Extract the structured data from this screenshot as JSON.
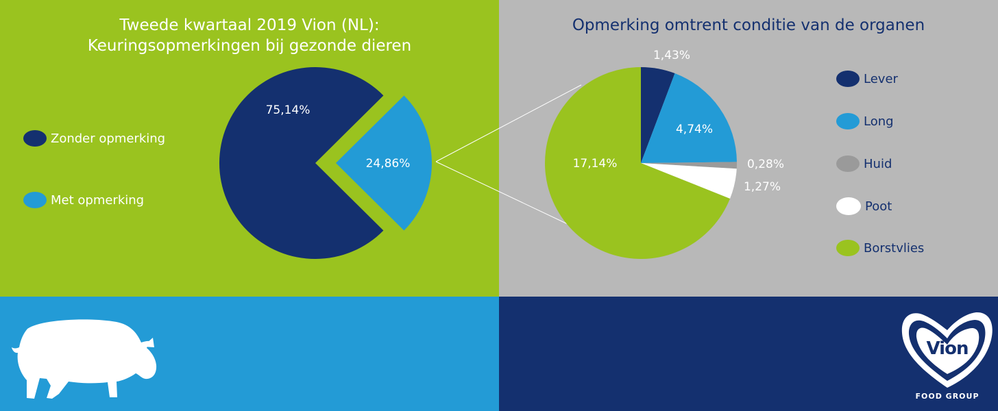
{
  "colors": {
    "green": "#9ac31f",
    "grey": "#b8b8b8",
    "dark_blue": "#14306f",
    "light_blue": "#239bd6",
    "white": "#ffffff",
    "huid_grey": "#9a9a9a"
  },
  "icons": [
    "pig-icon",
    "vion-heart-logo"
  ],
  "chart_data": [
    {
      "type": "pie",
      "title": [
        "Tweede kwartaal 2019 Vion (NL):",
        "Keuringsopmerkingen bij gezonde dieren"
      ],
      "series": [
        {
          "name": "Zonder opmerking",
          "value": 75.14,
          "label": "75,14%",
          "color": "#14306f"
        },
        {
          "name": "Met opmerking",
          "value": 24.86,
          "label": "24,86%",
          "color": "#239bd6",
          "exploded": true
        }
      ],
      "legend_placement": "left"
    },
    {
      "type": "pie",
      "title": "Opmerking omtrent conditie van de organen",
      "series": [
        {
          "name": "Lever",
          "value": 1.43,
          "label": "1,43%",
          "color": "#14306f"
        },
        {
          "name": "Long",
          "value": 4.74,
          "label": "4,74%",
          "color": "#239bd6"
        },
        {
          "name": "Huid",
          "value": 0.28,
          "label": "0,28%",
          "color": "#9a9a9a"
        },
        {
          "name": "Poot",
          "value": 1.27,
          "label": "1,27%",
          "color": "#ffffff"
        },
        {
          "name": "Borstvlies",
          "value": 17.14,
          "label": "17,14%",
          "color": "#9ac31f"
        }
      ],
      "legend_placement": "right"
    }
  ],
  "logo": {
    "name": "Vion",
    "tagline": "FOOD GROUP"
  }
}
